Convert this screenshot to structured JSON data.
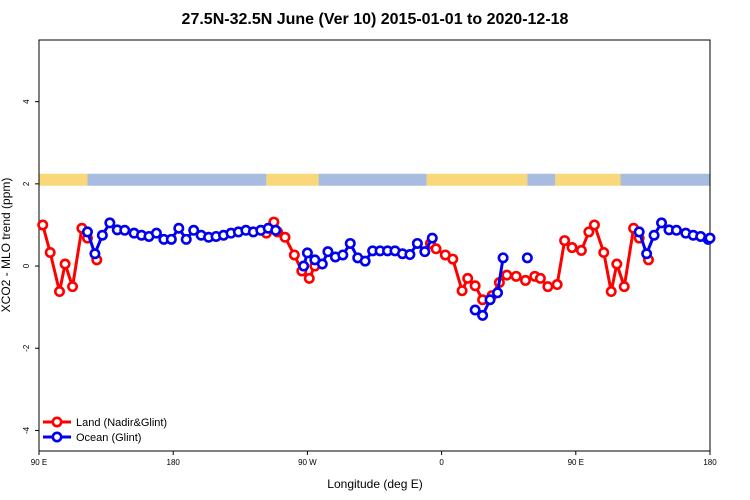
{
  "chart_data": {
    "type": "line",
    "title": "27.5N-32.5N June (Ver 10)   2015-01-01 to 2020-12-18",
    "xlabel": "Longitude (deg E)",
    "ylabel": "XCO2 - MLO trend (ppm)",
    "xlim": [
      90,
      450
    ],
    "ylim": [
      -4.5,
      5.5
    ],
    "x_ticks": [
      {
        "value": 90,
        "label": "90 E"
      },
      {
        "value": 162,
        "label": "180"
      },
      {
        "value": 234,
        "label": "90 W"
      },
      {
        "value": 306,
        "label": "0"
      },
      {
        "value": 378,
        "label": "90 E"
      },
      {
        "value": 450,
        "label": "180"
      }
    ],
    "y_ticks": [
      {
        "value": -4,
        "label": "-4"
      },
      {
        "value": -2,
        "label": "-2"
      },
      {
        "value": 0,
        "label": "0"
      },
      {
        "value": 2,
        "label": "2"
      },
      {
        "value": 4,
        "label": "4"
      }
    ],
    "legend_position": "bottom-left",
    "colors": {
      "land": "#ff0000",
      "ocean": "#0000ee",
      "land_mask": "#f8d878",
      "ocean_mask": "#a8bce0"
    },
    "surface_strip": {
      "y_center": 2.1,
      "segments": [
        {
          "type": "land",
          "x_start": 90,
          "x_end": 116
        },
        {
          "type": "ocean",
          "x_start": 116,
          "x_end": 212
        },
        {
          "type": "land",
          "x_start": 212,
          "x_end": 240
        },
        {
          "type": "ocean",
          "x_start": 240,
          "x_end": 298
        },
        {
          "type": "land",
          "x_start": 298,
          "x_end": 352
        },
        {
          "type": "ocean",
          "x_start": 352,
          "x_end": 367
        },
        {
          "type": "land",
          "x_start": 367,
          "x_end": 402
        },
        {
          "type": "ocean",
          "x_start": 402,
          "x_end": 450
        }
      ]
    },
    "series": [
      {
        "name": "Land (Nadir&Glint)",
        "segments": [
          [
            [
              92,
              1.0
            ],
            [
              96,
              0.33
            ],
            [
              101,
              -0.62
            ],
            [
              104,
              0.05
            ],
            [
              108,
              -0.5
            ],
            [
              113,
              0.92
            ],
            [
              116,
              0.68
            ]
          ],
          [
            [
              121,
              0.15
            ]
          ],
          [
            [
              212,
              0.8
            ],
            [
              216,
              1.07
            ],
            [
              218,
              0.83
            ],
            [
              222,
              0.7
            ],
            [
              227,
              0.27
            ],
            [
              231,
              -0.12
            ],
            [
              235,
              -0.3
            ],
            [
              238,
              0.0
            ]
          ],
          [
            [
              300,
              0.55
            ],
            [
              303,
              0.42
            ],
            [
              308,
              0.27
            ],
            [
              312,
              0.17
            ],
            [
              317,
              -0.6
            ],
            [
              320,
              -0.3
            ],
            [
              324,
              -0.48
            ],
            [
              328,
              -0.82
            ],
            [
              333,
              -0.72
            ],
            [
              337,
              -0.4
            ],
            [
              341,
              -0.22
            ],
            [
              346,
              -0.25
            ],
            [
              351,
              -0.35
            ],
            [
              356,
              -0.25
            ],
            [
              359,
              -0.3
            ],
            [
              363,
              -0.5
            ],
            [
              368,
              -0.45
            ],
            [
              372,
              0.62
            ],
            [
              376,
              0.45
            ],
            [
              381,
              0.38
            ],
            [
              385,
              0.83
            ],
            [
              388,
              1.0
            ],
            [
              393,
              0.33
            ],
            [
              397,
              -0.62
            ],
            [
              400,
              0.05
            ],
            [
              404,
              -0.5
            ],
            [
              409,
              0.92
            ],
            [
              412,
              0.68
            ]
          ],
          [
            [
              417,
              0.15
            ]
          ]
        ]
      },
      {
        "name": "Ocean (Glint)",
        "segments": [
          [
            [
              116,
              0.83
            ],
            [
              120,
              0.3
            ],
            [
              124,
              0.75
            ],
            [
              128,
              1.05
            ],
            [
              132,
              0.88
            ],
            [
              136,
              0.87
            ],
            [
              141,
              0.8
            ],
            [
              145,
              0.75
            ],
            [
              149,
              0.72
            ],
            [
              153,
              0.8
            ],
            [
              157,
              0.65
            ],
            [
              161,
              0.65
            ],
            [
              165,
              0.92
            ],
            [
              169,
              0.65
            ],
            [
              173,
              0.87
            ],
            [
              177,
              0.75
            ],
            [
              181,
              0.7
            ],
            [
              185,
              0.72
            ],
            [
              189,
              0.75
            ],
            [
              193,
              0.8
            ],
            [
              197,
              0.83
            ],
            [
              201,
              0.87
            ],
            [
              205,
              0.83
            ],
            [
              209,
              0.87
            ],
            [
              213,
              0.92
            ],
            [
              217,
              0.87
            ]
          ],
          [
            [
              232,
              0.0
            ],
            [
              234,
              0.32
            ],
            [
              238,
              0.15
            ],
            [
              242,
              0.05
            ],
            [
              245,
              0.35
            ],
            [
              249,
              0.22
            ],
            [
              253,
              0.27
            ],
            [
              257,
              0.55
            ],
            [
              261,
              0.2
            ],
            [
              265,
              0.12
            ],
            [
              269,
              0.37
            ],
            [
              273,
              0.37
            ],
            [
              277,
              0.37
            ],
            [
              281,
              0.37
            ],
            [
              285,
              0.3
            ],
            [
              289,
              0.28
            ],
            [
              293,
              0.55
            ],
            [
              297,
              0.35
            ],
            [
              301,
              0.68
            ]
          ],
          [
            [
              324,
              -1.07
            ],
            [
              328,
              -1.2
            ],
            [
              332,
              -0.82
            ],
            [
              336,
              -0.65
            ],
            [
              339,
              0.2
            ]
          ],
          [
            [
              352,
              0.2
            ]
          ],
          [
            [
              412,
              0.83
            ],
            [
              416,
              0.3
            ],
            [
              420,
              0.75
            ],
            [
              424,
              1.05
            ],
            [
              428,
              0.88
            ],
            [
              432,
              0.87
            ],
            [
              437,
              0.8
            ],
            [
              441,
              0.75
            ],
            [
              445,
              0.72
            ],
            [
              449,
              0.65
            ],
            [
              450,
              0.68
            ]
          ]
        ]
      }
    ]
  }
}
